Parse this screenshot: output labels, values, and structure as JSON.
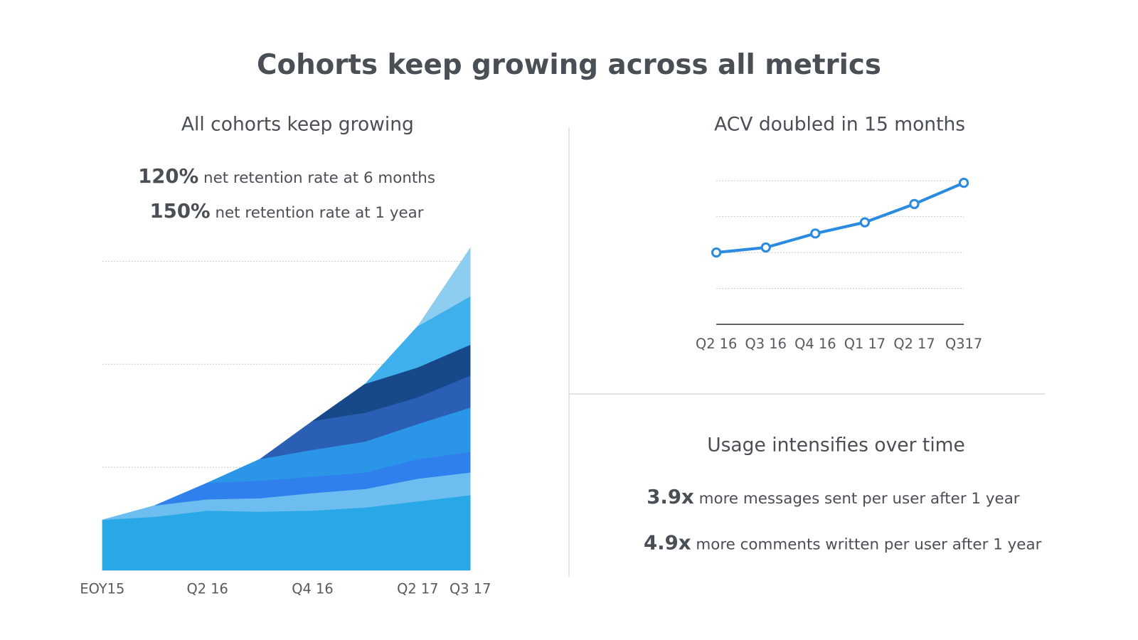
{
  "title": "Cohorts keep growing across all metrics",
  "retention": {
    "stats": [
      {
        "value": "120%",
        "text": "net retention rate at 6 months"
      },
      {
        "value": "150%",
        "text": "net retention rate at 1 year"
      }
    ]
  },
  "usage": {
    "title": "Usage intensifies over time",
    "stats": [
      {
        "value": "3.9x",
        "text": "more messages sent per user after 1 year"
      },
      {
        "value": "4.9x",
        "text": "more comments written per user after 1 year"
      }
    ]
  },
  "chart_data": [
    {
      "type": "area",
      "stacked": true,
      "title": "All cohorts keep growing",
      "categories": [
        "EOY15",
        null,
        "Q2 16",
        null,
        "Q4 16",
        null,
        "Q2 17",
        "Q3 17"
      ],
      "ylim": [
        0,
        3.2
      ],
      "yticks": [
        1,
        2,
        3
      ],
      "grid": true,
      "series": [
        {
          "color": "#29a8e8",
          "values": [
            0.49,
            0.52,
            0.58,
            0.57,
            0.58,
            0.61,
            0.67,
            0.73
          ]
        },
        {
          "color": "#6dbdf0",
          "values": [
            0,
            0.11,
            0.11,
            0.13,
            0.17,
            0.18,
            0.22,
            0.22
          ]
        },
        {
          "color": "#2f80ec",
          "values": [
            null,
            0,
            0.16,
            0.17,
            0.16,
            0.16,
            0.19,
            0.2
          ]
        },
        {
          "color": "#2b96e8",
          "values": [
            null,
            null,
            0,
            0.21,
            0.26,
            0.3,
            0.34,
            0.43
          ]
        },
        {
          "color": "#2a5fb5",
          "values": [
            null,
            null,
            null,
            0,
            0.28,
            0.28,
            0.26,
            0.31
          ]
        },
        {
          "color": "#17498a",
          "values": [
            null,
            null,
            null,
            null,
            0,
            0.28,
            0.29,
            0.3
          ]
        },
        {
          "color": "#40b0ec",
          "values": [
            null,
            null,
            null,
            null,
            null,
            0,
            0.4,
            0.47
          ]
        },
        {
          "color": "#8dcdf0",
          "values": [
            null,
            null,
            null,
            null,
            null,
            null,
            0,
            0.47
          ]
        }
      ]
    },
    {
      "type": "line",
      "title": "ACV doubled in 15 months",
      "categories": [
        "Q2 16",
        "Q3 16",
        "Q4 16",
        "Q1 17",
        "Q2 17",
        "Q317"
      ],
      "values": [
        2.0,
        2.14,
        2.53,
        2.84,
        3.35,
        3.94
      ],
      "color": "#2a8be0",
      "ylim": [
        0,
        4
      ],
      "yticks": [
        1,
        2,
        3,
        4
      ],
      "grid": true
    }
  ]
}
